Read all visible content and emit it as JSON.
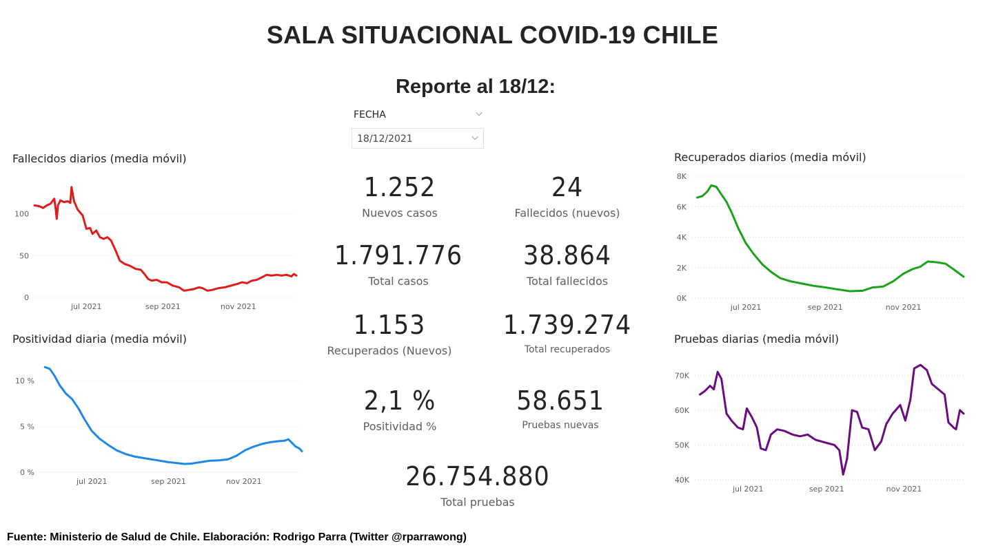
{
  "title": "SALA SITUACIONAL COVID-19 CHILE",
  "report_title": "Reporte al 18/12:",
  "slicer": {
    "label": "FECHA",
    "value": "18/12/2021",
    "chevron": "⌵"
  },
  "kpis": {
    "nuevos_casos": {
      "value": "1.252",
      "label": "Nuevos casos"
    },
    "fallecidos_nuevos": {
      "value": "24",
      "label": "Fallecidos (nuevos)"
    },
    "total_casos": {
      "value": "1.791.776",
      "label": "Total casos"
    },
    "total_fallecidos": {
      "value": "38.864",
      "label": "Total fallecidos"
    },
    "recuperados_nuevos": {
      "value": "1.153",
      "label": "Recuperados (Nuevos)"
    },
    "total_recuperados": {
      "value": "1.739.274",
      "label": "Total recuperados"
    },
    "positividad": {
      "value": "2,1 %",
      "label": "Positividad %"
    },
    "pruebas_nuevas": {
      "value": "58.651",
      "label": "Pruebas nuevas"
    },
    "total_pruebas": {
      "value": "26.754.880",
      "label": "Total pruebas"
    }
  },
  "footer": "Fuente: Ministerio de Salud de Chile. Elaboración: Rodrigo Parra (Twitter @rparrawong)",
  "chart_data": [
    {
      "id": "fallecidos",
      "type": "line",
      "title": "Fallecidos diarios (media móvil)",
      "color": "#e01b1b",
      "x_range": [
        "2021-05-20",
        "2021-12-18"
      ],
      "ylim": [
        0,
        140
      ],
      "yticks": [
        {
          "v": 0,
          "label": "0"
        },
        {
          "v": 50,
          "label": "50"
        },
        {
          "v": 100,
          "label": "100"
        }
      ],
      "xticks": [
        {
          "date": "2021-07-01",
          "label": "jul 2021"
        },
        {
          "date": "2021-09-01",
          "label": "sep 2021"
        },
        {
          "date": "2021-11-01",
          "label": "nov 2021"
        }
      ],
      "grid": true,
      "points": [
        [
          "2021-05-20",
          110
        ],
        [
          "2021-05-24",
          109
        ],
        [
          "2021-05-27",
          107
        ],
        [
          "2021-05-30",
          110
        ],
        [
          "2021-06-02",
          112
        ],
        [
          "2021-06-05",
          118
        ],
        [
          "2021-06-06",
          108
        ],
        [
          "2021-06-07",
          94
        ],
        [
          "2021-06-08",
          110
        ],
        [
          "2021-06-10",
          116
        ],
        [
          "2021-06-13",
          114
        ],
        [
          "2021-06-16",
          115
        ],
        [
          "2021-06-18",
          113
        ],
        [
          "2021-06-19",
          132
        ],
        [
          "2021-06-21",
          115
        ],
        [
          "2021-06-24",
          105
        ],
        [
          "2021-06-28",
          98
        ],
        [
          "2021-07-01",
          82
        ],
        [
          "2021-07-04",
          83
        ],
        [
          "2021-07-06",
          76
        ],
        [
          "2021-07-09",
          80
        ],
        [
          "2021-07-12",
          72
        ],
        [
          "2021-07-15",
          70
        ],
        [
          "2021-07-18",
          72
        ],
        [
          "2021-07-21",
          68
        ],
        [
          "2021-07-25",
          55
        ],
        [
          "2021-07-28",
          44
        ],
        [
          "2021-08-01",
          40
        ],
        [
          "2021-08-05",
          38
        ],
        [
          "2021-08-10",
          34
        ],
        [
          "2021-08-14",
          33
        ],
        [
          "2021-08-17",
          28
        ],
        [
          "2021-08-20",
          22
        ],
        [
          "2021-08-23",
          20
        ],
        [
          "2021-08-27",
          21
        ],
        [
          "2021-08-31",
          18
        ],
        [
          "2021-09-04",
          18
        ],
        [
          "2021-09-09",
          14
        ],
        [
          "2021-09-14",
          12
        ],
        [
          "2021-09-18",
          8
        ],
        [
          "2021-09-22",
          9
        ],
        [
          "2021-09-26",
          10
        ],
        [
          "2021-09-30",
          12
        ],
        [
          "2021-10-03",
          11
        ],
        [
          "2021-10-07",
          8
        ],
        [
          "2021-10-11",
          9
        ],
        [
          "2021-10-16",
          11
        ],
        [
          "2021-10-21",
          12
        ],
        [
          "2021-10-26",
          14
        ],
        [
          "2021-10-31",
          16
        ],
        [
          "2021-11-04",
          18
        ],
        [
          "2021-11-08",
          17
        ],
        [
          "2021-11-12",
          20
        ],
        [
          "2021-11-16",
          21
        ],
        [
          "2021-11-20",
          24
        ],
        [
          "2021-11-24",
          27
        ],
        [
          "2021-11-28",
          26
        ],
        [
          "2021-12-02",
          27
        ],
        [
          "2021-12-06",
          26
        ],
        [
          "2021-12-10",
          27
        ],
        [
          "2021-12-14",
          25
        ],
        [
          "2021-12-16",
          28
        ],
        [
          "2021-12-18",
          26
        ]
      ]
    },
    {
      "id": "positividad",
      "type": "line",
      "title": "Positividad diaria (media móvil)",
      "color": "#1e88e5",
      "x_range": [
        "2021-05-20",
        "2021-12-18"
      ],
      "ylim": [
        0,
        12.5
      ],
      "yticks": [
        {
          "v": 0,
          "label": "0 %"
        },
        {
          "v": 5,
          "label": "5 %"
        },
        {
          "v": 10,
          "label": "10 %"
        }
      ],
      "xticks": [
        {
          "date": "2021-07-01",
          "label": "jul 2021"
        },
        {
          "date": "2021-09-01",
          "label": "sep 2021"
        },
        {
          "date": "2021-11-01",
          "label": "nov 2021"
        }
      ],
      "grid": true,
      "points": [
        [
          "2021-05-24",
          11.5
        ],
        [
          "2021-05-28",
          11.3
        ],
        [
          "2021-06-01",
          10.5
        ],
        [
          "2021-06-05",
          9.5
        ],
        [
          "2021-06-10",
          8.6
        ],
        [
          "2021-06-15",
          8.0
        ],
        [
          "2021-06-20",
          7.0
        ],
        [
          "2021-06-25",
          5.8
        ],
        [
          "2021-07-01",
          4.5
        ],
        [
          "2021-07-07",
          3.7
        ],
        [
          "2021-07-14",
          3.0
        ],
        [
          "2021-07-21",
          2.4
        ],
        [
          "2021-07-28",
          2.0
        ],
        [
          "2021-08-05",
          1.7
        ],
        [
          "2021-08-14",
          1.5
        ],
        [
          "2021-08-23",
          1.3
        ],
        [
          "2021-09-01",
          1.1
        ],
        [
          "2021-09-08",
          1.0
        ],
        [
          "2021-09-14",
          0.9
        ],
        [
          "2021-09-20",
          0.95
        ],
        [
          "2021-09-27",
          1.1
        ],
        [
          "2021-10-04",
          1.25
        ],
        [
          "2021-10-12",
          1.3
        ],
        [
          "2021-10-19",
          1.4
        ],
        [
          "2021-10-26",
          1.8
        ],
        [
          "2021-11-02",
          2.4
        ],
        [
          "2021-11-09",
          2.8
        ],
        [
          "2021-11-16",
          3.1
        ],
        [
          "2021-11-23",
          3.3
        ],
        [
          "2021-11-30",
          3.4
        ],
        [
          "2021-12-04",
          3.45
        ],
        [
          "2021-12-07",
          3.6
        ],
        [
          "2021-12-10",
          3.2
        ],
        [
          "2021-12-13",
          2.8
        ],
        [
          "2021-12-16",
          2.6
        ],
        [
          "2021-12-18",
          2.3
        ]
      ]
    },
    {
      "id": "recuperados",
      "type": "line",
      "title": "Recuperados diarios (media móvil)",
      "color": "#1aa31a",
      "x_range": [
        "2021-05-20",
        "2021-12-18"
      ],
      "ylim": [
        0,
        8000
      ],
      "yticks": [
        {
          "v": 0,
          "label": "0K"
        },
        {
          "v": 2000,
          "label": "2K"
        },
        {
          "v": 4000,
          "label": "4K"
        },
        {
          "v": 6000,
          "label": "6K"
        },
        {
          "v": 8000,
          "label": "8K"
        }
      ],
      "xticks": [
        {
          "date": "2021-07-01",
          "label": "jul 2021"
        },
        {
          "date": "2021-09-01",
          "label": "sep 2021"
        },
        {
          "date": "2021-11-01",
          "label": "nov 2021"
        }
      ],
      "grid": true,
      "points": [
        [
          "2021-05-24",
          6600
        ],
        [
          "2021-05-28",
          6700
        ],
        [
          "2021-06-01",
          7000
        ],
        [
          "2021-06-04",
          7400
        ],
        [
          "2021-06-08",
          7300
        ],
        [
          "2021-06-12",
          6800
        ],
        [
          "2021-06-16",
          6300
        ],
        [
          "2021-06-20",
          5600
        ],
        [
          "2021-06-25",
          4600
        ],
        [
          "2021-07-01",
          3600
        ],
        [
          "2021-07-07",
          2900
        ],
        [
          "2021-07-14",
          2200
        ],
        [
          "2021-07-21",
          1700
        ],
        [
          "2021-07-28",
          1300
        ],
        [
          "2021-08-05",
          1100
        ],
        [
          "2021-08-14",
          950
        ],
        [
          "2021-08-23",
          800
        ],
        [
          "2021-09-01",
          700
        ],
        [
          "2021-09-10",
          580
        ],
        [
          "2021-09-20",
          450
        ],
        [
          "2021-09-30",
          480
        ],
        [
          "2021-10-08",
          700
        ],
        [
          "2021-10-16",
          750
        ],
        [
          "2021-10-24",
          1100
        ],
        [
          "2021-11-01",
          1600
        ],
        [
          "2021-11-08",
          1900
        ],
        [
          "2021-11-14",
          2050
        ],
        [
          "2021-11-20",
          2400
        ],
        [
          "2021-11-27",
          2350
        ],
        [
          "2021-12-04",
          2250
        ],
        [
          "2021-12-10",
          1900
        ],
        [
          "2021-12-18",
          1400
        ]
      ]
    },
    {
      "id": "pruebas",
      "type": "line",
      "title": "Pruebas diarias (media móvil)",
      "color": "#6a0a80",
      "x_range": [
        "2021-05-20",
        "2021-12-18"
      ],
      "ylim": [
        40000,
        75000
      ],
      "yticks": [
        {
          "v": 40000,
          "label": "40K"
        },
        {
          "v": 50000,
          "label": "50K"
        },
        {
          "v": 60000,
          "label": "60K"
        },
        {
          "v": 70000,
          "label": "70K"
        }
      ],
      "xticks": [
        {
          "date": "2021-07-01",
          "label": "jul 2021"
        },
        {
          "date": "2021-09-01",
          "label": "sep 2021"
        },
        {
          "date": "2021-11-01",
          "label": "nov 2021"
        }
      ],
      "grid": true,
      "points": [
        [
          "2021-05-24",
          64500
        ],
        [
          "2021-05-28",
          65500
        ],
        [
          "2021-06-01",
          67000
        ],
        [
          "2021-06-04",
          66000
        ],
        [
          "2021-06-07",
          71000
        ],
        [
          "2021-06-10",
          69000
        ],
        [
          "2021-06-14",
          59000
        ],
        [
          "2021-06-18",
          57000
        ],
        [
          "2021-06-23",
          55000
        ],
        [
          "2021-06-27",
          54500
        ],
        [
          "2021-06-30",
          60500
        ],
        [
          "2021-07-04",
          58000
        ],
        [
          "2021-07-08",
          55000
        ],
        [
          "2021-07-11",
          49000
        ],
        [
          "2021-07-15",
          48500
        ],
        [
          "2021-07-19",
          53000
        ],
        [
          "2021-07-24",
          54500
        ],
        [
          "2021-07-30",
          54000
        ],
        [
          "2021-08-05",
          53000
        ],
        [
          "2021-08-11",
          52500
        ],
        [
          "2021-08-17",
          53000
        ],
        [
          "2021-08-23",
          51500
        ],
        [
          "2021-08-28",
          51000
        ],
        [
          "2021-09-02",
          50500
        ],
        [
          "2021-09-07",
          50000
        ],
        [
          "2021-09-11",
          48500
        ],
        [
          "2021-09-14",
          41500
        ],
        [
          "2021-09-17",
          46000
        ],
        [
          "2021-09-21",
          60000
        ],
        [
          "2021-09-25",
          59500
        ],
        [
          "2021-09-29",
          55000
        ],
        [
          "2021-10-04",
          54500
        ],
        [
          "2021-10-09",
          48500
        ],
        [
          "2021-10-14",
          51000
        ],
        [
          "2021-10-18",
          56000
        ],
        [
          "2021-10-23",
          59000
        ],
        [
          "2021-10-29",
          61500
        ],
        [
          "2021-11-02",
          57000
        ],
        [
          "2021-11-06",
          63000
        ],
        [
          "2021-11-09",
          72000
        ],
        [
          "2021-11-14",
          73000
        ],
        [
          "2021-11-19",
          71500
        ],
        [
          "2021-11-23",
          67500
        ],
        [
          "2021-11-28",
          66000
        ],
        [
          "2021-12-03",
          64500
        ],
        [
          "2021-12-06",
          56500
        ],
        [
          "2021-12-10",
          55000
        ],
        [
          "2021-12-12",
          54500
        ],
        [
          "2021-12-15",
          60000
        ],
        [
          "2021-12-18",
          59000
        ]
      ]
    }
  ]
}
